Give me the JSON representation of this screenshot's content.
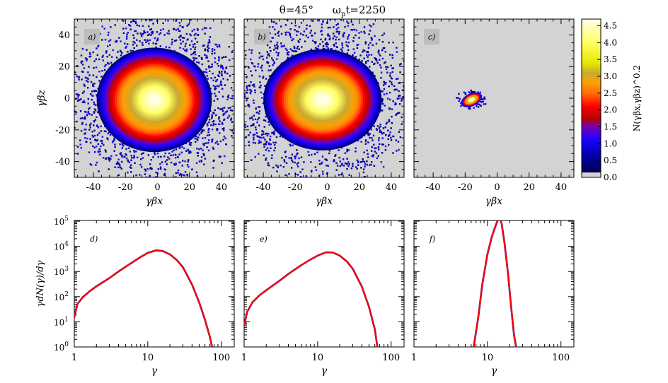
{
  "title": {
    "theta": "θ=45°",
    "omega_prefix": "ω",
    "omega_sub": "p",
    "omega_suffix": "t=2250"
  },
  "chart_data": [
    {
      "type": "heatmap",
      "panel_label": "a)",
      "xlabel": "γβx",
      "ylabel": "γβz",
      "xlim": [
        -52,
        48
      ],
      "ylim": [
        -50,
        50
      ],
      "xticks": [
        -40,
        -20,
        0,
        20,
        40
      ],
      "yticks": [
        -40,
        -20,
        0,
        20,
        40
      ],
      "distribution": {
        "center": [
          -2,
          -1
        ],
        "core_radius": [
          13,
          12
        ],
        "outer_radius": [
          36,
          33
        ],
        "scatter_radius": [
          46,
          44
        ],
        "peak": 4.6
      }
    },
    {
      "type": "heatmap",
      "panel_label": "b)",
      "xlabel": "γβx",
      "ylabel": "",
      "xlim": [
        -52,
        48
      ],
      "ylim": [
        -50,
        50
      ],
      "xticks": [
        -40,
        -20,
        0,
        20,
        40
      ],
      "yticks": [
        -40,
        -20,
        0,
        20,
        40
      ],
      "distribution": {
        "center": [
          -3,
          -1
        ],
        "core_radius": [
          15,
          11
        ],
        "outer_radius": [
          37,
          32
        ],
        "scatter_radius": [
          46,
          43
        ],
        "peak": 4.6
      }
    },
    {
      "type": "heatmap",
      "panel_label": "c)",
      "xlabel": "γβx",
      "ylabel": "",
      "xlim": [
        -52,
        48
      ],
      "ylim": [
        -50,
        50
      ],
      "xticks": [
        -40,
        -20,
        0,
        20,
        40
      ],
      "yticks": [
        -40,
        -20,
        0,
        20,
        40
      ],
      "distribution": {
        "center": [
          -16,
          -1
        ],
        "core_radius": [
          3,
          2
        ],
        "outer_radius": [
          7,
          4
        ],
        "scatter_radius": [
          8,
          5
        ],
        "peak": 4.6
      }
    },
    {
      "type": "colorbar",
      "label": "N(γβx,γβz)^0.2",
      "range": [
        0,
        4.7
      ],
      "ticks": [
        "0.0",
        "0.5",
        "1.0",
        "1.5",
        "2.0",
        "2.5",
        "3.0",
        "3.5",
        "4.0",
        "4.5"
      ]
    },
    {
      "type": "line",
      "panel_label": "d)",
      "scale": "log-log",
      "xlabel": "γ",
      "ylabel": "γdN(γ)/dγ",
      "xlim": [
        1,
        150
      ],
      "ylim": [
        1,
        100000
      ],
      "xticks": [
        "1",
        "10",
        "100"
      ],
      "yticks": [
        "10^0",
        "10^1",
        "10^2",
        "10^3",
        "10^4",
        "10^5"
      ],
      "series": [
        {
          "name": "spectrum",
          "color": "#ff0000",
          "x": [
            1,
            1.1,
            1.3,
            1.6,
            2,
            3,
            4,
            6,
            8,
            10,
            13,
            16,
            20,
            25,
            30,
            40,
            50,
            60,
            70,
            75
          ],
          "y": [
            15,
            50,
            95,
            160,
            260,
            550,
            1000,
            2200,
            3800,
            5500,
            7000,
            6500,
            4800,
            2800,
            1500,
            300,
            60,
            12,
            2.5,
            1
          ]
        }
      ]
    },
    {
      "type": "line",
      "panel_label": "e)",
      "scale": "log-log",
      "xlabel": "γ",
      "ylabel": "",
      "xlim": [
        1,
        150
      ],
      "ylim": [
        1,
        100000
      ],
      "xticks": [
        "1",
        "10",
        "100"
      ],
      "yticks": [
        "10^0",
        "10^1",
        "10^2",
        "10^3",
        "10^4",
        "10^5"
      ],
      "series": [
        {
          "name": "spectrum",
          "color": "#ff0000",
          "x": [
            1,
            1.1,
            1.3,
            1.6,
            2,
            3,
            4,
            6,
            8,
            10,
            13,
            16,
            20,
            25,
            30,
            40,
            50,
            60,
            65
          ],
          "y": [
            7,
            25,
            60,
            110,
            180,
            420,
            800,
            1800,
            3000,
            4300,
            5800,
            5700,
            4300,
            2500,
            1300,
            250,
            40,
            5,
            1
          ]
        }
      ]
    },
    {
      "type": "line",
      "panel_label": "f)",
      "scale": "log-log",
      "xlabel": "γ",
      "ylabel": "",
      "xlim": [
        1,
        150
      ],
      "ylim": [
        1,
        100000
      ],
      "xticks": [
        "1",
        "10",
        "100"
      ],
      "yticks": [
        "10^0",
        "10^1",
        "10^2",
        "10^3",
        "10^4",
        "10^5"
      ],
      "series": [
        {
          "name": "spectrum",
          "color": "#ff0000",
          "x": [
            6.5,
            7.5,
            8.5,
            10,
            11.5,
            13,
            14,
            14.5,
            15.5,
            17,
            19,
            21,
            23,
            24.5
          ],
          "y": [
            1,
            15,
            300,
            5000,
            25000,
            70000,
            120000,
            130000,
            90000,
            15000,
            900,
            40,
            3,
            1
          ]
        }
      ]
    }
  ],
  "colors": {
    "background": "#d3d3d3",
    "curve": "#ff0000",
    "curve_shadow": "#0000a0",
    "colormap": [
      "#d3d3d3",
      "#000050",
      "#0000a0",
      "#1e00ff",
      "#7800b4",
      "#b40000",
      "#ff0000",
      "#ff6e0a",
      "#ffa000",
      "#c8aa32",
      "#ffff64",
      "#ffffe6"
    ]
  }
}
